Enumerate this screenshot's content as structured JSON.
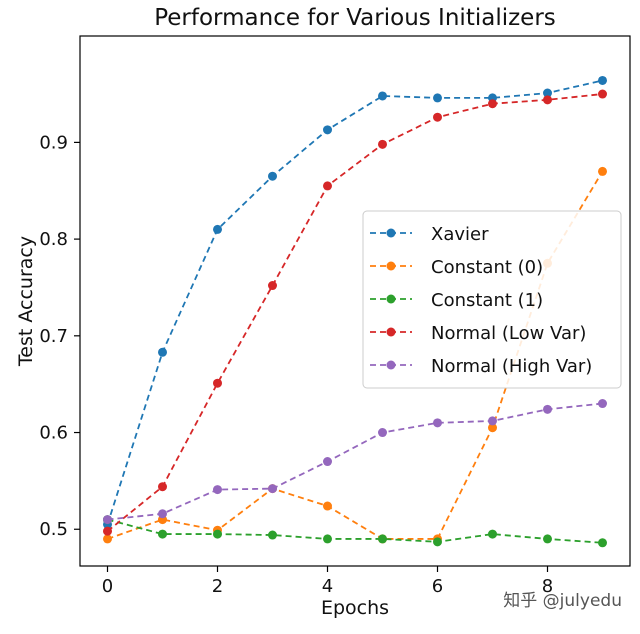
{
  "chart_data": {
    "type": "line",
    "title": "Performance for Various Initializers",
    "xlabel": "Epochs",
    "ylabel": "Test Accuracy",
    "xlim": [
      -0.5,
      9.5
    ],
    "ylim": [
      0.462,
      1.01
    ],
    "xticks": [
      0,
      2,
      4,
      6,
      8
    ],
    "yticks": [
      0.5,
      0.6,
      0.7,
      0.8,
      0.9
    ],
    "ytick_labels": [
      "0.5",
      "0.6",
      "0.7",
      "0.8",
      "0.9"
    ],
    "grid": false,
    "legend_position": "center-right",
    "x": [
      0,
      1,
      2,
      3,
      4,
      5,
      6,
      7,
      8,
      9
    ],
    "series": [
      {
        "name": "Xavier",
        "color": "#1f77b4",
        "values": [
          0.505,
          0.683,
          0.81,
          0.865,
          0.913,
          0.948,
          0.946,
          0.946,
          0.951,
          0.964
        ]
      },
      {
        "name": "Constant (0)",
        "color": "#ff7f0e",
        "values": [
          0.49,
          0.51,
          0.499,
          0.542,
          0.524,
          0.49,
          0.49,
          0.605,
          0.775,
          0.87
        ]
      },
      {
        "name": "Constant (1)",
        "color": "#2ca02c",
        "values": [
          0.51,
          0.495,
          0.495,
          0.494,
          0.49,
          0.49,
          0.487,
          0.495,
          0.49,
          0.486
        ]
      },
      {
        "name": "Normal (Low Var)",
        "color": "#d62728",
        "values": [
          0.498,
          0.544,
          0.651,
          0.752,
          0.855,
          0.898,
          0.926,
          0.94,
          0.944,
          0.95
        ]
      },
      {
        "name": "Normal (High Var)",
        "color": "#9467bd",
        "values": [
          0.51,
          0.516,
          0.541,
          0.542,
          0.57,
          0.6,
          0.61,
          0.612,
          0.624,
          0.63
        ]
      }
    ]
  },
  "watermark": "知乎 @julyedu"
}
